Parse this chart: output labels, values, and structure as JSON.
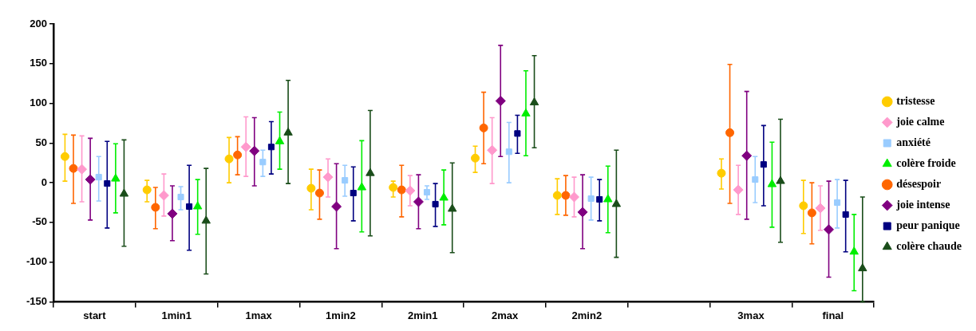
{
  "chart_data": {
    "type": "scatter",
    "categories": [
      "start",
      "1min1",
      "1max",
      "1min2",
      "2min1",
      "2max",
      "2min2",
      null,
      "3max",
      "final"
    ],
    "ylim": [
      -150,
      200
    ],
    "yticks": [
      -150,
      -100,
      -50,
      0,
      50,
      100,
      150,
      200
    ],
    "grid": false,
    "legend": "right",
    "series": [
      {
        "name": "tristesse",
        "color": "#ffcc00",
        "marker": "circle",
        "values": [
          33,
          -9,
          30,
          -7,
          -6,
          31,
          -16,
          null,
          12,
          -29
        ],
        "errors": [
          [
            2,
            61
          ],
          [
            -24,
            3
          ],
          [
            0,
            57
          ],
          [
            -34,
            17
          ],
          [
            -18,
            2
          ],
          [
            13,
            46
          ],
          [
            -40,
            5
          ],
          null,
          [
            -8,
            30
          ],
          [
            -64,
            3
          ]
        ]
      },
      {
        "name": "joie calme",
        "color": "#ff99cc",
        "marker": "diamond",
        "values": [
          17,
          -16,
          45,
          7,
          -10,
          41,
          -18,
          null,
          -9,
          -32
        ],
        "errors": [
          [
            -24,
            59
          ],
          [
            -42,
            11
          ],
          [
            8,
            83
          ],
          [
            -18,
            30
          ],
          [
            -29,
            9
          ],
          [
            -1,
            82
          ],
          [
            -43,
            7
          ],
          null,
          [
            -40,
            22
          ],
          [
            -60,
            -4
          ]
        ]
      },
      {
        "name": "anxiété",
        "color": "#99ccff",
        "marker": "square",
        "values": [
          7,
          -18,
          26,
          3,
          -12,
          39,
          -20,
          null,
          4,
          -25
        ],
        "errors": [
          [
            -23,
            33
          ],
          [
            -34,
            -5
          ],
          [
            8,
            41
          ],
          [
            -17,
            22
          ],
          [
            -21,
            -4
          ],
          [
            0,
            76
          ],
          [
            -47,
            7
          ],
          null,
          [
            -25,
            33
          ],
          [
            -57,
            4
          ]
        ]
      },
      {
        "name": "colère froide",
        "color": "#00ee00",
        "marker": "triangle",
        "values": [
          5,
          -30,
          52,
          -6,
          -19,
          87,
          -21,
          null,
          -2,
          -87
        ],
        "errors": [
          [
            -38,
            49
          ],
          [
            -65,
            4
          ],
          [
            17,
            89
          ],
          [
            -62,
            53
          ],
          [
            -53,
            16
          ],
          [
            34,
            141
          ],
          [
            -63,
            21
          ],
          null,
          [
            -56,
            51
          ],
          [
            -136,
            -40
          ]
        ]
      },
      {
        "name": "désespoir",
        "color": "#ff6600",
        "marker": "circle",
        "values": [
          18,
          -31,
          35,
          -13,
          -9,
          69,
          -16,
          null,
          63,
          -38
        ],
        "errors": [
          [
            -26,
            60
          ],
          [
            -58,
            -6
          ],
          [
            10,
            58
          ],
          [
            -46,
            16
          ],
          [
            -43,
            22
          ],
          [
            24,
            114
          ],
          [
            -41,
            9
          ],
          null,
          [
            -26,
            149
          ],
          [
            -77,
            0
          ]
        ]
      },
      {
        "name": "joie intense",
        "color": "#800080",
        "marker": "diamond",
        "values": [
          4,
          -39,
          40,
          -30,
          -24,
          103,
          -37,
          null,
          34,
          -59
        ],
        "errors": [
          [
            -47,
            56
          ],
          [
            -73,
            -4
          ],
          [
            -4,
            82
          ],
          [
            -83,
            24
          ],
          [
            -58,
            10
          ],
          [
            33,
            173
          ],
          [
            -83,
            10
          ],
          null,
          [
            -46,
            115
          ],
          [
            -119,
            2
          ]
        ]
      },
      {
        "name": "peur panique",
        "color": "#000080",
        "marker": "square",
        "values": [
          -1,
          -30,
          45,
          -13,
          -27,
          62,
          -21,
          null,
          23,
          -40
        ],
        "errors": [
          [
            -57,
            52
          ],
          [
            -85,
            22
          ],
          [
            11,
            77
          ],
          [
            -48,
            20
          ],
          [
            -55,
            -1
          ],
          [
            37,
            85
          ],
          [
            -48,
            4
          ],
          null,
          [
            -29,
            72
          ],
          [
            -87,
            3
          ]
        ]
      },
      {
        "name": "colère chaude",
        "color": "#1a4d1a",
        "marker": "triangle",
        "values": [
          -14,
          -48,
          63,
          12,
          -33,
          101,
          -27,
          null,
          2,
          -108
        ],
        "errors": [
          [
            -80,
            54
          ],
          [
            -115,
            18
          ],
          [
            -1,
            129
          ],
          [
            -67,
            91
          ],
          [
            -88,
            25
          ],
          [
            44,
            160
          ],
          [
            -94,
            41
          ],
          null,
          [
            -75,
            80
          ],
          [
            -150,
            -18
          ]
        ]
      }
    ]
  }
}
